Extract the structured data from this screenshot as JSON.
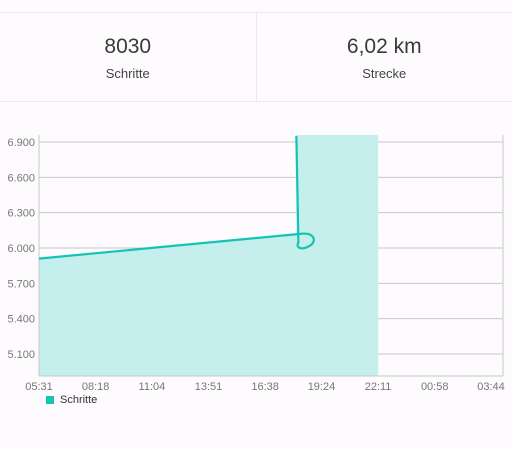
{
  "stats": {
    "steps": {
      "value": "8030",
      "label": "Schritte"
    },
    "distance": {
      "value": "6,02 km",
      "label": "Strecke"
    }
  },
  "colors": {
    "series": "#12c4b4",
    "fill": "#c4efec",
    "grid": "#c8c8c8",
    "tick": "#777777"
  },
  "chart_data": {
    "type": "line",
    "title": "",
    "xlabel": "",
    "ylabel": "",
    "x_ticks": [
      "05:31",
      "08:18",
      "11:04",
      "13:51",
      "16:38",
      "19:24",
      "22:11",
      "00:58",
      "03:44"
    ],
    "y_ticks": [
      "6.900",
      "6.600",
      "6.300",
      "6.000",
      "5.700",
      "5.400",
      "5.100"
    ],
    "y_tick_values": [
      6900,
      6600,
      6300,
      6000,
      5700,
      5400,
      5100
    ],
    "ylim": [
      4900,
      6950
    ],
    "grid": true,
    "legend_position": "bottom-left",
    "series": [
      {
        "name": "Schritte",
        "points": [
          [
            "05:31",
            5910
          ],
          [
            "18:21",
            6120
          ],
          [
            "18:45",
            6100
          ],
          [
            "18:55",
            6030
          ],
          [
            "18:35",
            5990
          ],
          [
            "18:16",
            6050
          ],
          [
            "18:10",
            6950
          ]
        ],
        "area_end": "22:11"
      }
    ]
  }
}
